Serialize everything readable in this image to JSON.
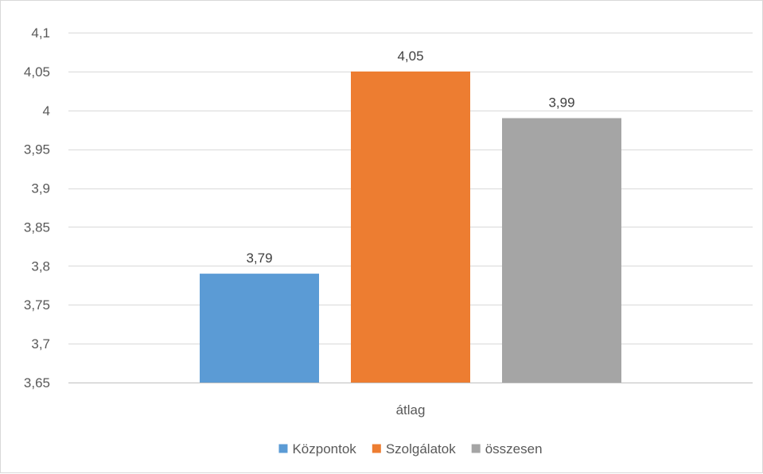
{
  "chart_data": {
    "type": "bar",
    "categories": [
      "átlag"
    ],
    "series": [
      {
        "name": "Központok",
        "values": [
          3.79
        ],
        "color": "#5b9bd5"
      },
      {
        "name": "Szolgálatok",
        "values": [
          4.05
        ],
        "color": "#ed7d31"
      },
      {
        "name": "összesen",
        "values": [
          3.99
        ],
        "color": "#a5a5a5"
      }
    ],
    "data_labels": [
      "3,79",
      "4,05",
      "3,99"
    ],
    "y_ticks": [
      3.65,
      3.7,
      3.75,
      3.8,
      3.85,
      3.9,
      3.95,
      4,
      4.05,
      4.1
    ],
    "y_tick_labels": [
      "3,65",
      "3,7",
      "3,75",
      "3,8",
      "3,85",
      "3,9",
      "3,95",
      "4",
      "4,05",
      "4,1"
    ],
    "ylim": [
      3.65,
      4.1
    ],
    "grid": true,
    "legend_position": "bottom",
    "title": "",
    "xlabel": "",
    "ylabel": ""
  }
}
